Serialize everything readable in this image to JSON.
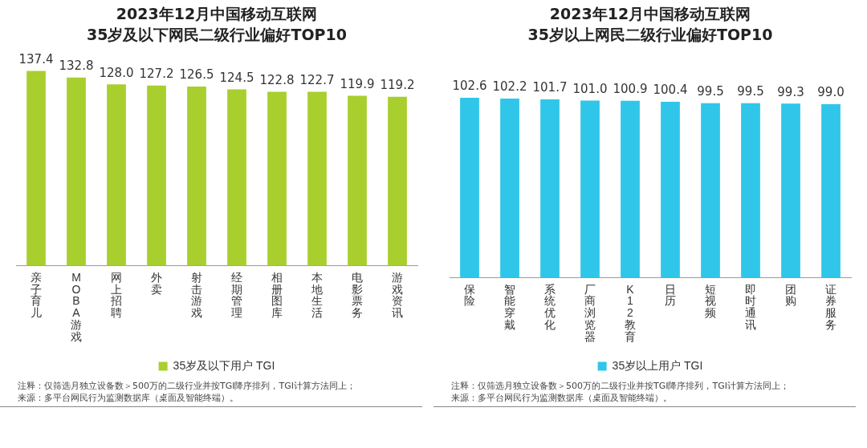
{
  "chart_data": [
    {
      "type": "bar",
      "title": "2023年12月中国移动互联网",
      "subtitle": "35岁及以下网民二级行业偏好TOP10",
      "categories": [
        "亲子育儿",
        "MOBA游戏",
        "网上招聘",
        "外卖",
        "射击游戏",
        "经期管理",
        "相册图库",
        "本地生活",
        "电影票务",
        "游戏资讯"
      ],
      "series": [
        {
          "name": "35岁及以下用户 TGI",
          "color": "#a8cf2e",
          "values": [
            137.4,
            132.8,
            128.0,
            127.2,
            126.5,
            124.5,
            122.8,
            122.7,
            119.9,
            119.2
          ],
          "value_labels": [
            "137.4",
            "132.8",
            "128.0",
            "127.2",
            "126.5",
            "124.5",
            "122.8",
            "122.7",
            "119.9",
            "119.2"
          ]
        }
      ],
      "legend": "bottom",
      "grid": false,
      "annotations": [
        "注释：仅筛选月独立设备数＞500万的二级行业并按TGI降序排列，TGI计算方法同上；",
        "来源：多平台网民行为监测数据库（桌面及智能终端）。"
      ]
    },
    {
      "type": "bar",
      "title": "2023年12月中国移动互联网",
      "subtitle": "35岁以上网民二级行业偏好TOP10",
      "categories": [
        "保险",
        "智能穿戴",
        "系统优化",
        "厂商浏览器",
        "K12教育",
        "日历",
        "短视频",
        "即时通讯",
        "团购",
        "证券服务"
      ],
      "series": [
        {
          "name": "35岁以上用户 TGI",
          "color": "#2fc6ea",
          "values": [
            102.6,
            102.2,
            101.7,
            101.0,
            100.9,
            100.4,
            99.5,
            99.5,
            99.3,
            99.0
          ],
          "value_labels": [
            "102.6",
            "102.2",
            "101.7",
            "101.0",
            "100.9",
            "100.4",
            "99.5",
            "99.5",
            "99.3",
            "99.0"
          ]
        }
      ],
      "legend": "bottom",
      "grid": false,
      "annotations": [
        "注释：仅筛选月独立设备数＞500万的二级行业并按TGI降序排列，TGI计算方法同上；",
        "来源：多平台网民行为监测数据库（桌面及智能终端）。"
      ]
    }
  ]
}
